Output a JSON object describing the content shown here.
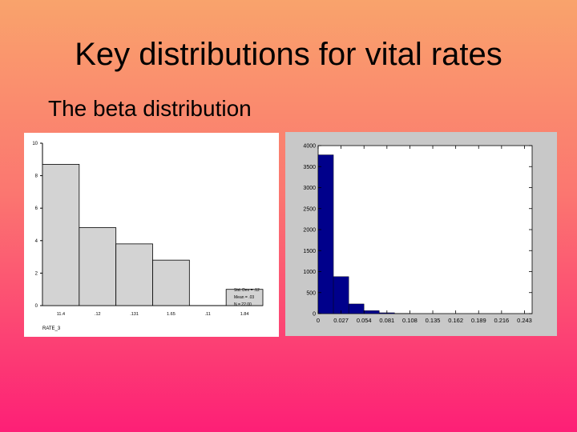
{
  "slide": {
    "title": "Key distributions for vital rates",
    "subtitle": "The beta distribution"
  },
  "chart_data": [
    {
      "type": "bar",
      "title": "",
      "xlabel": "RATE_3",
      "ylabel": "",
      "x_tick_labels": [
        "11.4",
        ".12",
        ".131",
        "1.65",
        ".11",
        "1.84"
      ],
      "y_tick_labels": [
        "0",
        "2",
        "4",
        "6",
        "8",
        "10"
      ],
      "ylim": [
        0,
        10
      ],
      "bins": [
        {
          "start": 0,
          "end": 1,
          "value": 8.7
        },
        {
          "start": 1,
          "end": 2,
          "value": 4.8
        },
        {
          "start": 2,
          "end": 3,
          "value": 3.8
        },
        {
          "start": 3,
          "end": 4,
          "value": 2.8
        },
        {
          "start": 4,
          "end": 5,
          "value": 0
        },
        {
          "start": 5,
          "end": 6,
          "value": 1.0
        }
      ],
      "xlim": [
        0,
        6
      ],
      "legend_placement": "bottom-right",
      "legend_lines": [
        "Std. Dev = .12",
        "Mean = .03",
        "N = 22.00"
      ],
      "bar_color": "#d3d3d3",
      "grid": false
    },
    {
      "type": "bar",
      "title": "",
      "xlabel": "",
      "ylabel": "",
      "x_tick_labels": [
        "0",
        "0.027",
        "0.054",
        "0.081",
        "0.108",
        "0.135",
        "0.162",
        "0.189",
        "0.216",
        "0.243"
      ],
      "x_tick_values": [
        0,
        0.027,
        0.054,
        0.081,
        0.108,
        0.135,
        0.162,
        0.189,
        0.216,
        0.243
      ],
      "y_tick_labels": [
        "0",
        "500",
        "1000",
        "1500",
        "2000",
        "2500",
        "3000",
        "3500",
        "4000"
      ],
      "y_tick_values": [
        0,
        500,
        1000,
        1500,
        2000,
        2500,
        3000,
        3500,
        4000
      ],
      "xlim": [
        0,
        0.252
      ],
      "ylim": [
        0,
        4000
      ],
      "bins": [
        {
          "start": 0,
          "end": 0.018,
          "value": 3780
        },
        {
          "start": 0.018,
          "end": 0.036,
          "value": 880
        },
        {
          "start": 0.036,
          "end": 0.054,
          "value": 230
        },
        {
          "start": 0.054,
          "end": 0.072,
          "value": 70
        },
        {
          "start": 0.072,
          "end": 0.09,
          "value": 20
        },
        {
          "start": 0.09,
          "end": 0.108,
          "value": 5
        }
      ],
      "bar_color": "#00008b",
      "grid": false
    }
  ]
}
